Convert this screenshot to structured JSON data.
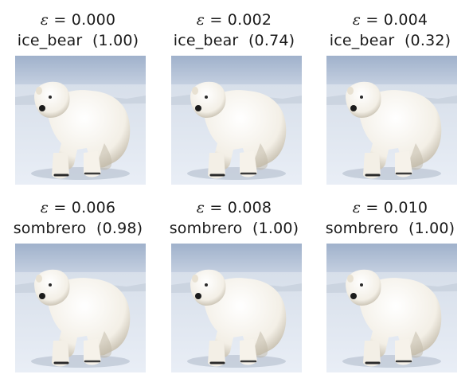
{
  "panels": [
    {
      "epsilon": "0.000",
      "label": "ice_bear",
      "confidence": "(1.00)"
    },
    {
      "epsilon": "0.002",
      "label": "ice_bear",
      "confidence": "(0.74)"
    },
    {
      "epsilon": "0.004",
      "label": "ice_bear",
      "confidence": "(0.32)"
    },
    {
      "epsilon": "0.006",
      "label": "sombrero",
      "confidence": "(0.98)"
    },
    {
      "epsilon": "0.008",
      "label": "sombrero",
      "confidence": "(1.00)"
    },
    {
      "epsilon": "0.010",
      "label": "sombrero",
      "confidence": "(1.00)"
    }
  ],
  "symbols": {
    "epsilon": "ε",
    "equals": " = "
  },
  "colors": {
    "snow": "#e9eef6",
    "sky": "#9fb1cb",
    "fur": "#f3efe6",
    "shadow": "#bfb7a6"
  }
}
